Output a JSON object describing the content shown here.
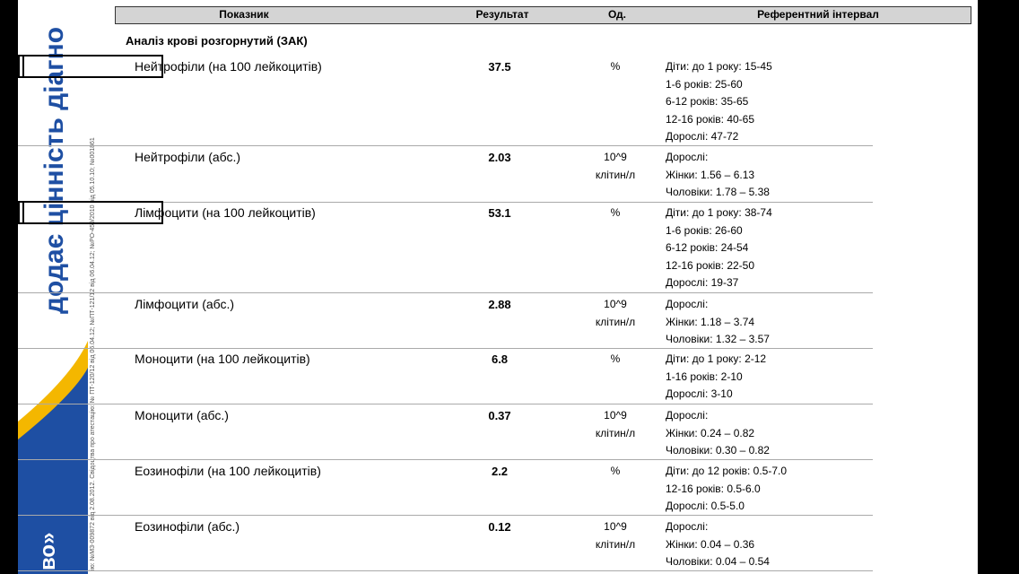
{
  "sidebar": {
    "slogan": "додає цінність діагно",
    "brand": "во»",
    "license": "ію: №МЗ-009872 від 2.08.2012. Свідоцтва про атестацію: № ПТ-120/12 від 06.04.12; №ПТ-121/12 від 06.04.12; №РО-459/2010 від 05.10.10; №001861"
  },
  "table": {
    "headers": [
      "Показник",
      "Результат",
      "Од.",
      "Референтний інтервал"
    ],
    "section": "Аналіз крові розгорнутий (ЗАК)",
    "rows": [
      {
        "name": "Нейтрофіли (на 100 лейкоцитів)",
        "result": "37.5",
        "highlighted": true,
        "unit": [
          "%"
        ],
        "reference": [
          "Діти: до 1 року: 15-45",
          "1-6 років: 25-60",
          "6-12 років: 35-65",
          "12-16 років: 40-65",
          "Дорослі: 47-72"
        ]
      },
      {
        "name": "Нейтрофіли (абс.)",
        "result": "2.03",
        "highlighted": false,
        "unit": [
          "10^9",
          "клітин/л"
        ],
        "reference": [
          "Дорослі:",
          "Жінки: 1.56 – 6.13",
          "Чоловіки: 1.78 – 5.38"
        ]
      },
      {
        "name": "Лімфоцити (на 100 лейкоцитів)",
        "result": "53.1",
        "highlighted": true,
        "unit": [
          "%"
        ],
        "reference": [
          "Діти: до 1 року: 38-74",
          "1-6 років: 26-60",
          "6-12 років: 24-54",
          "12-16 років: 22-50",
          "Дорослі: 19-37"
        ]
      },
      {
        "name": "Лімфоцити (абс.)",
        "result": "2.88",
        "highlighted": false,
        "unit": [
          "10^9",
          "клітин/л"
        ],
        "reference": [
          "Дорослі:",
          "Жінки: 1.18 – 3.74",
          "Чоловіки: 1.32 – 3.57"
        ]
      },
      {
        "name": "Моноцити (на 100 лейкоцитів)",
        "result": "6.8",
        "highlighted": false,
        "unit": [
          "%"
        ],
        "reference": [
          "Діти: до 1 року: 2-12",
          "1-16 років: 2-10",
          "Дорослі: 3-10"
        ]
      },
      {
        "name": "Моноцити (абс.)",
        "result": "0.37",
        "highlighted": false,
        "unit": [
          "10^9",
          "клітин/л"
        ],
        "reference": [
          "Дорослі:",
          "Жінки: 0.24 – 0.82",
          "Чоловіки: 0.30 – 0.82"
        ]
      },
      {
        "name": "Еозинофіли (на 100 лейкоцитів)",
        "result": "2.2",
        "highlighted": false,
        "unit": [
          "%"
        ],
        "reference": [
          "Діти: до 12 років: 0.5-7.0",
          "12-16 років: 0.5-6.0",
          "Дорослі: 0.5-5.0"
        ]
      },
      {
        "name": "Еозинофіли (абс.)",
        "result": "0.12",
        "highlighted": false,
        "unit": [
          "10^9",
          "клітин/л"
        ],
        "reference": [
          "Дорослі:",
          "Жінки: 0.04 – 0.36",
          "Чоловіки: 0.04 – 0.54"
        ]
      }
    ]
  }
}
